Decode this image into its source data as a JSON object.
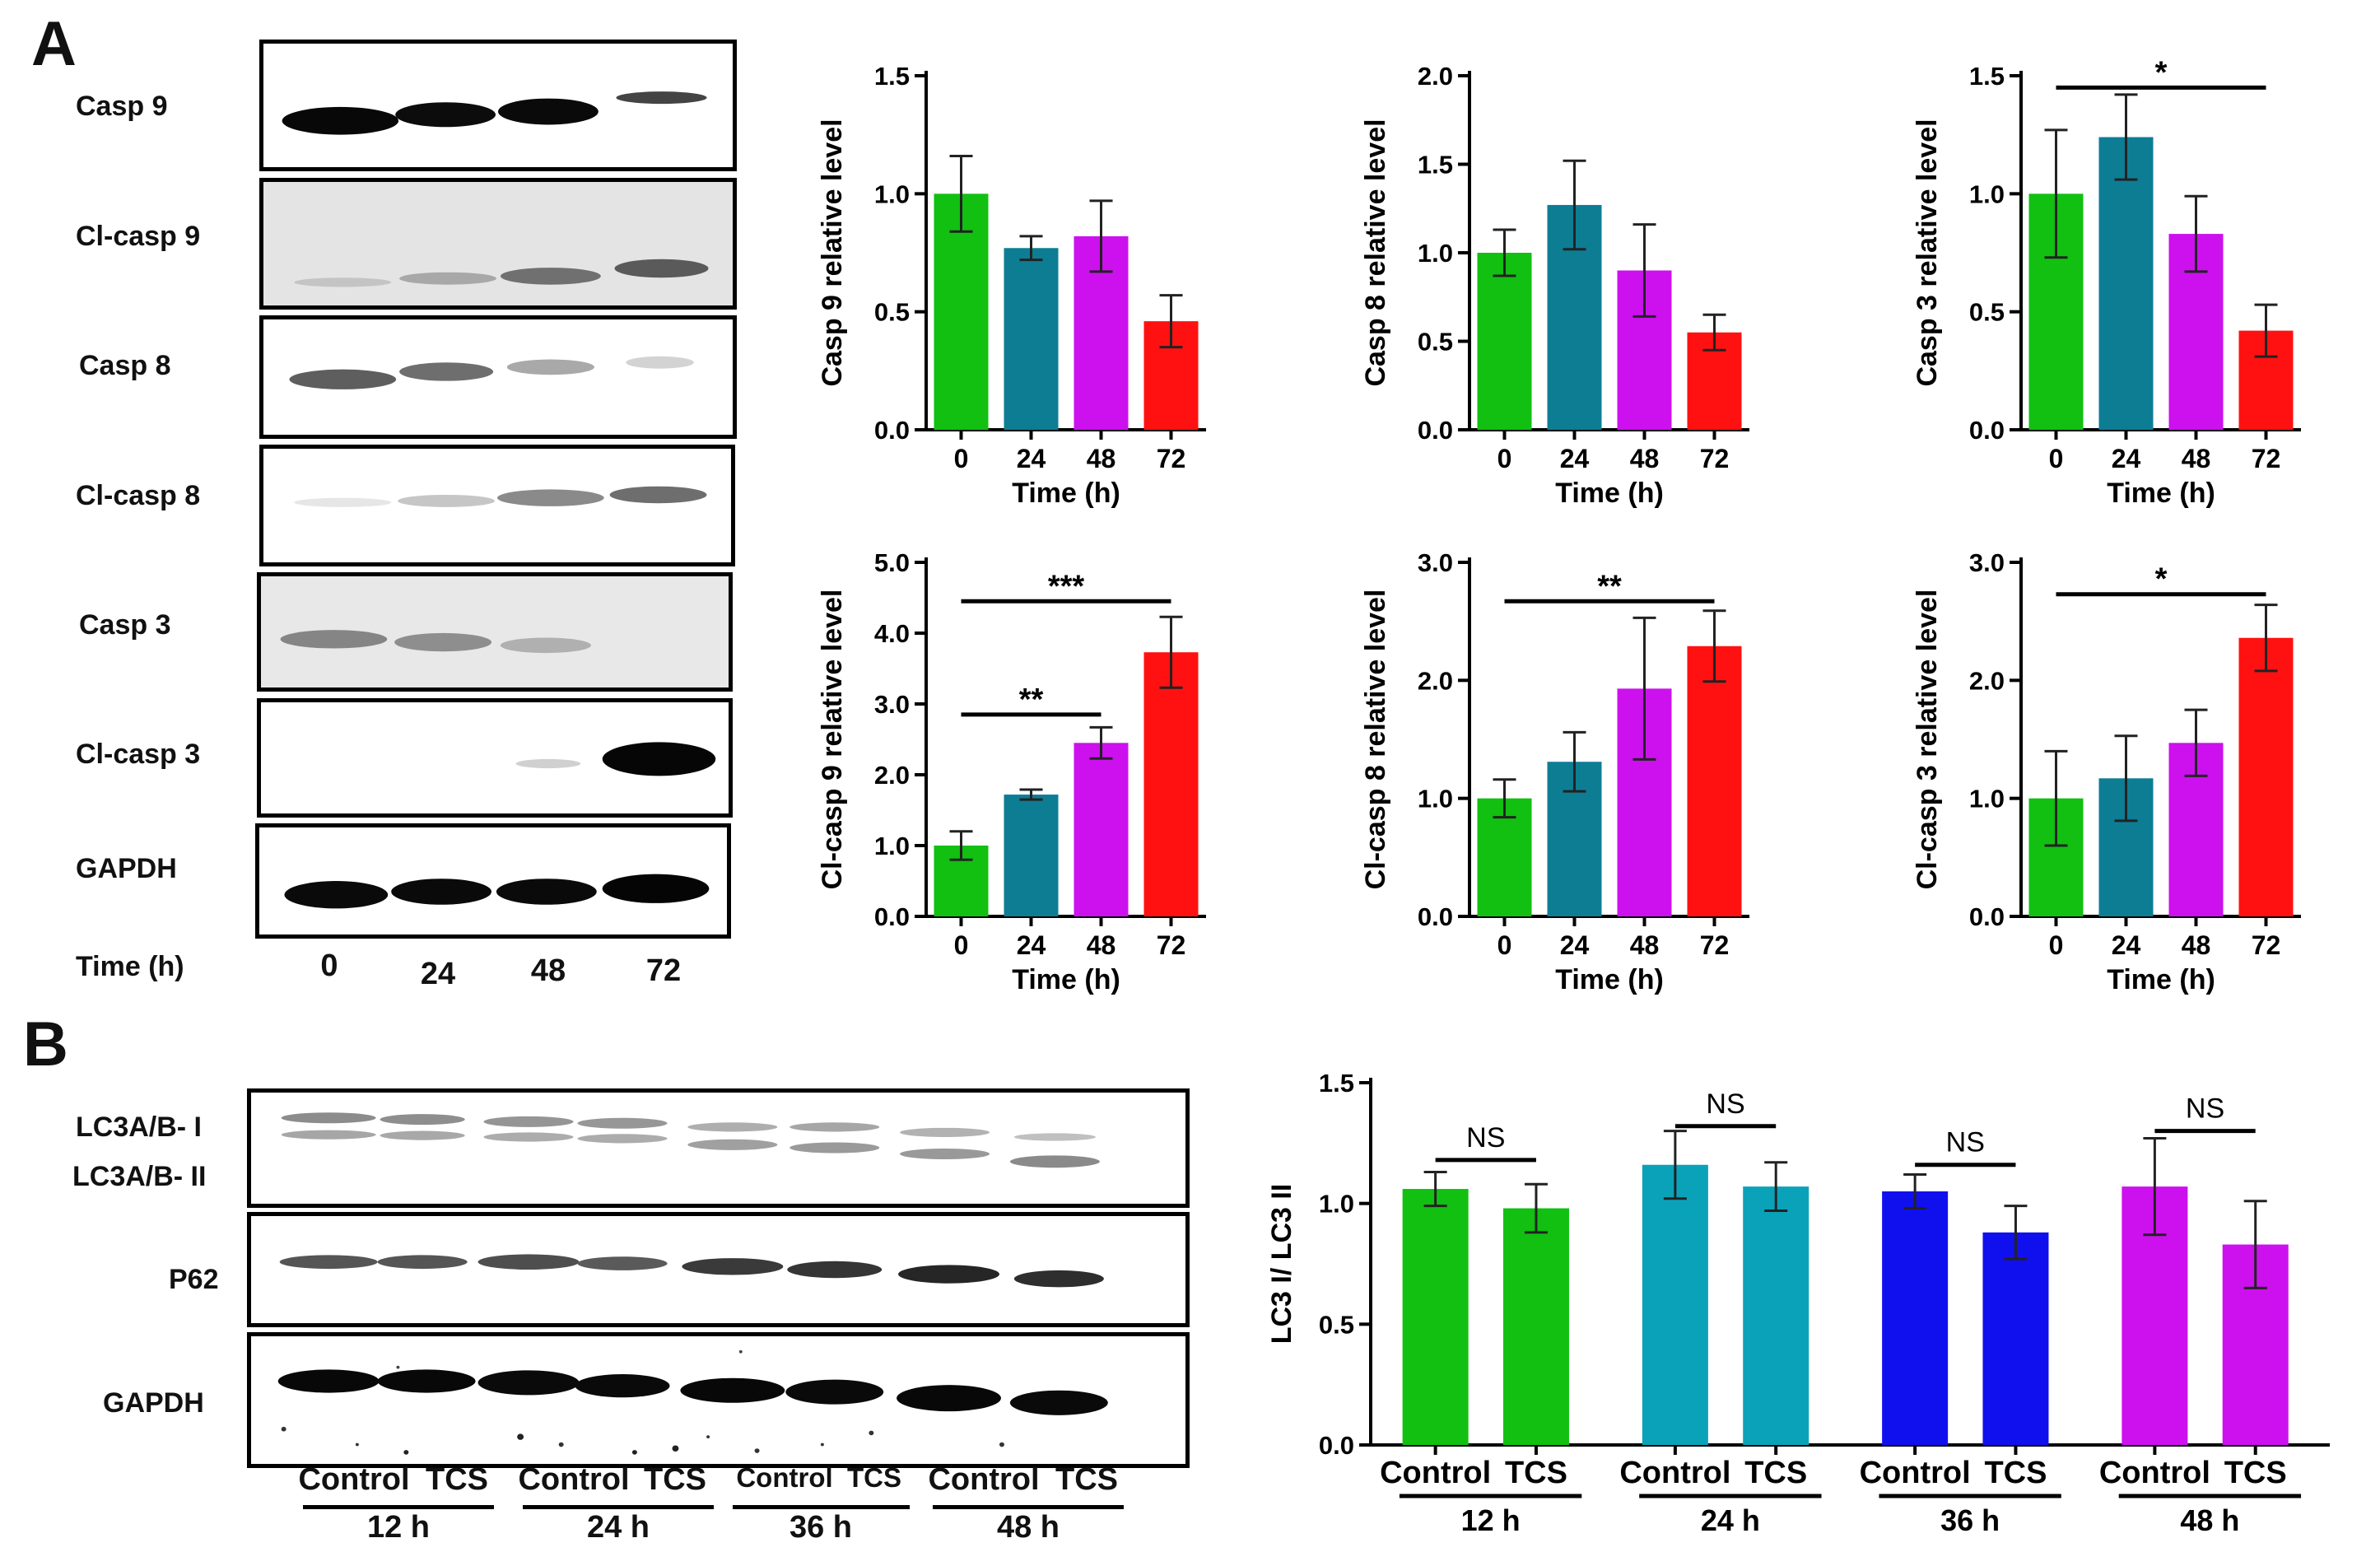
{
  "panels": {
    "a": "A",
    "b": "B"
  },
  "panel_a": {
    "blot_labels": [
      "Casp 9",
      "Cl-casp 9",
      "Casp 8",
      "Cl-casp 8",
      "Casp 3",
      "Cl-casp 3",
      "GAPDH"
    ],
    "time_label": "Time (h)",
    "time_points": [
      "0",
      "24",
      "48",
      "72"
    ]
  },
  "panel_b": {
    "blot_labels": [
      "LC3A/B- I",
      "LC3A/B- II",
      "P62",
      "GAPDH"
    ],
    "lane_labels": [
      "Control",
      "TCS",
      "Control",
      "TCS",
      "Control",
      "TCS",
      "Control",
      "TCS"
    ],
    "group_labels": [
      "12 h",
      "24 h",
      "36 h",
      "48 h"
    ]
  },
  "colors": {
    "green": "#11c011",
    "teal": "#0d7d94",
    "magenta": "#cc11ee",
    "red": "#ff1111",
    "cyan": "#0aa2b8",
    "blue": "#1010ee"
  },
  "chart_data": [
    {
      "type": "bar",
      "ylabel": "Casp 9 relative level",
      "xlabel": "Time (h)",
      "categories": [
        "0",
        "24",
        "48",
        "72"
      ],
      "values": [
        1.0,
        0.77,
        0.82,
        0.46
      ],
      "errors": [
        0.16,
        0.05,
        0.15,
        0.11
      ],
      "ylim": [
        0,
        1.5
      ],
      "yticks": [
        "0.0",
        "0.5",
        "1.0",
        "1.5"
      ],
      "colors": [
        "green",
        "teal",
        "magenta",
        "red"
      ],
      "significance": []
    },
    {
      "type": "bar",
      "ylabel": "Casp 8 relative level",
      "xlabel": "Time (h)",
      "categories": [
        "0",
        "24",
        "48",
        "72"
      ],
      "values": [
        1.0,
        1.27,
        0.9,
        0.55
      ],
      "errors": [
        0.13,
        0.25,
        0.26,
        0.1
      ],
      "ylim": [
        0,
        2.0
      ],
      "yticks": [
        "0.0",
        "0.5",
        "1.0",
        "1.5",
        "2.0"
      ],
      "colors": [
        "green",
        "teal",
        "magenta",
        "red"
      ],
      "significance": []
    },
    {
      "type": "bar",
      "ylabel": "Casp 3 relative level",
      "xlabel": "Time (h)",
      "categories": [
        "0",
        "24",
        "48",
        "72"
      ],
      "values": [
        1.0,
        1.24,
        0.83,
        0.42
      ],
      "errors": [
        0.27,
        0.18,
        0.16,
        0.11
      ],
      "ylim": [
        0,
        1.5
      ],
      "yticks": [
        "0.0",
        "0.5",
        "1.0",
        "1.5"
      ],
      "colors": [
        "green",
        "teal",
        "magenta",
        "red"
      ],
      "significance": [
        {
          "from": 0,
          "to": 3,
          "level": 1.45,
          "label": "*"
        }
      ]
    },
    {
      "type": "bar",
      "ylabel": "Cl-casp 9 relative level",
      "xlabel": "Time (h)",
      "categories": [
        "0",
        "24",
        "48",
        "72"
      ],
      "values": [
        1.0,
        1.72,
        2.45,
        3.73
      ],
      "errors": [
        0.2,
        0.07,
        0.22,
        0.5
      ],
      "ylim": [
        0,
        5.0
      ],
      "yticks": [
        "0.0",
        "1.0",
        "2.0",
        "3.0",
        "4.0",
        "5.0"
      ],
      "colors": [
        "green",
        "teal",
        "magenta",
        "red"
      ],
      "significance": [
        {
          "from": 0,
          "to": 2,
          "level": 2.85,
          "label": "**"
        },
        {
          "from": 0,
          "to": 3,
          "level": 4.45,
          "label": "***"
        }
      ]
    },
    {
      "type": "bar",
      "ylabel": "Cl-casp 8 relative level",
      "xlabel": "Time (h)",
      "categories": [
        "0",
        "24",
        "48",
        "72"
      ],
      "values": [
        1.0,
        1.31,
        1.93,
        2.29
      ],
      "errors": [
        0.16,
        0.25,
        0.6,
        0.3
      ],
      "ylim": [
        0,
        3.0
      ],
      "yticks": [
        "0.0",
        "1.0",
        "2.0",
        "3.0"
      ],
      "colors": [
        "green",
        "teal",
        "magenta",
        "red"
      ],
      "significance": [
        {
          "from": 0,
          "to": 3,
          "level": 2.67,
          "label": "**"
        }
      ]
    },
    {
      "type": "bar",
      "ylabel": "Cl-casp 3 relative level",
      "xlabel": "Time (h)",
      "categories": [
        "0",
        "24",
        "48",
        "72"
      ],
      "values": [
        1.0,
        1.17,
        1.47,
        2.36
      ],
      "errors": [
        0.4,
        0.36,
        0.28,
        0.28
      ],
      "ylim": [
        0,
        3.0
      ],
      "yticks": [
        "0.0",
        "1.0",
        "2.0",
        "3.0"
      ],
      "colors": [
        "green",
        "teal",
        "magenta",
        "red"
      ],
      "significance": [
        {
          "from": 0,
          "to": 3,
          "level": 2.73,
          "label": "*"
        }
      ]
    },
    {
      "type": "bar",
      "ylabel": "LC3 I/ LC3 II",
      "categories": [
        "Control",
        "TCS",
        "Control",
        "TCS",
        "Control",
        "TCS",
        "Control",
        "TCS"
      ],
      "groups": [
        "12 h",
        "24 h",
        "36 h",
        "48 h"
      ],
      "values": [
        1.06,
        0.98,
        1.16,
        1.07,
        1.05,
        0.88,
        1.07,
        0.83
      ],
      "errors": [
        0.07,
        0.1,
        0.14,
        0.1,
        0.07,
        0.11,
        0.2,
        0.18
      ],
      "ylim": [
        0,
        1.5
      ],
      "yticks": [
        "0.0",
        "0.5",
        "1.0",
        "1.5"
      ],
      "colors": [
        "green",
        "green",
        "cyan",
        "cyan",
        "blue",
        "blue",
        "magenta",
        "magenta"
      ],
      "significance": [
        {
          "from": 0,
          "to": 1,
          "level": 1.18,
          "label": "NS"
        },
        {
          "from": 2,
          "to": 3,
          "level": 1.32,
          "label": "NS"
        },
        {
          "from": 4,
          "to": 5,
          "level": 1.16,
          "label": "NS"
        },
        {
          "from": 6,
          "to": 7,
          "level": 1.3,
          "label": "NS"
        }
      ]
    }
  ]
}
